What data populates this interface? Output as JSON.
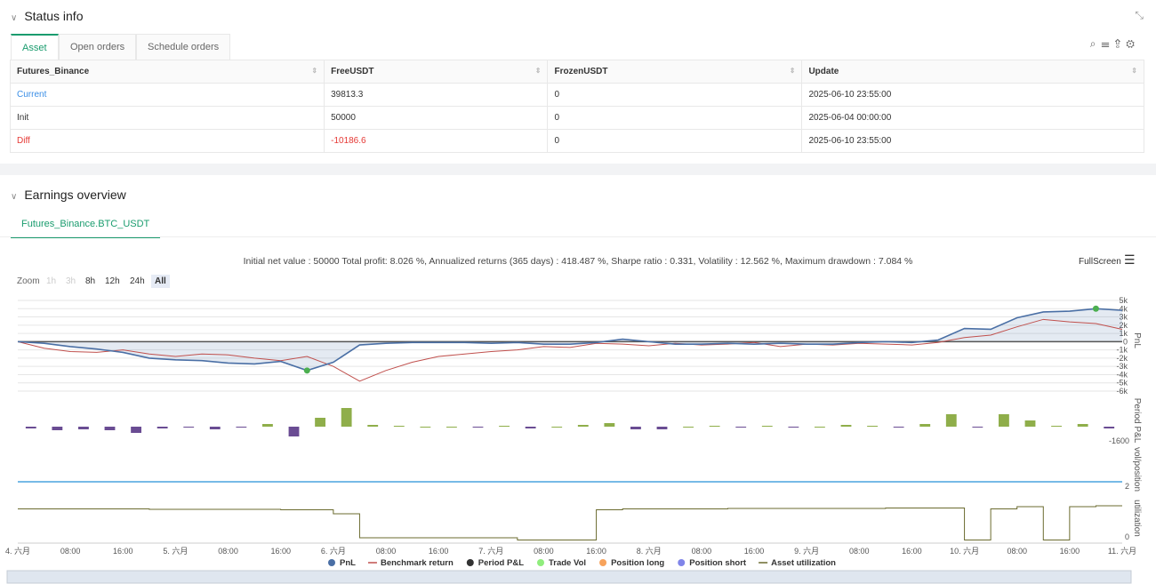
{
  "status": {
    "title": "Status info",
    "tabs": [
      "Asset",
      "Open orders",
      "Schedule orders"
    ],
    "table": {
      "headers": [
        "Futures_Binance",
        "FreeUSDT",
        "FrozenUSDT",
        "Update"
      ],
      "rows": [
        [
          "Current",
          "39813.3",
          "0",
          "2025-06-10 23:55:00"
        ],
        [
          "Init",
          "50000",
          "0",
          "2025-06-04 00:00:00"
        ],
        [
          "Diff",
          "-10186.6",
          "0",
          "2025-06-10 23:55:00"
        ]
      ]
    }
  },
  "earnings": {
    "title": "Earnings overview",
    "tab": "Futures_Binance.BTC_USDT",
    "summary": "Initial net value : 50000 Total profit: 8.026 %, Annualized returns (365 days) : 418.487 %, Sharpe ratio : 0.331, Volatility : 12.562 %, Maximum drawdown : 7.084 %",
    "fullscreen": "FullScreen",
    "zoom_label": "Zoom",
    "zoom_options": [
      "1h",
      "3h",
      "8h",
      "12h",
      "24h",
      "All"
    ]
  },
  "chart": {
    "x_labels": [
      "4. 六月",
      "08:00",
      "16:00",
      "5. 六月",
      "08:00",
      "16:00",
      "6. 六月",
      "08:00",
      "16:00",
      "7. 六月",
      "08:00",
      "16:00",
      "8. 六月",
      "08:00",
      "16:00",
      "9. 六月",
      "08:00",
      "16:00",
      "10. 六月",
      "08:00",
      "16:00",
      "11. 六月"
    ],
    "panel_titles": [
      "PnL",
      "Period P&L",
      "vol/position",
      "utilization"
    ],
    "pnl_ylim": [
      -6000,
      5000
    ],
    "pnl_yticks": [
      {
        "value": 5000,
        "label": "5k"
      },
      {
        "value": 4000,
        "label": "4k"
      },
      {
        "value": 3000,
        "label": "3k"
      },
      {
        "value": 2000,
        "label": "2k"
      },
      {
        "value": 1000,
        "label": "1k"
      },
      0,
      {
        "value": -1000,
        "label": "-1k"
      },
      {
        "value": -2000,
        "label": "-2k"
      },
      {
        "value": -3000,
        "label": "-3k"
      },
      {
        "value": -4000,
        "label": "-4k"
      },
      {
        "value": -5000,
        "label": "-5k"
      },
      {
        "value": -6000,
        "label": "-6k"
      }
    ],
    "pnl": [
      0,
      -200,
      -600,
      -900,
      -1300,
      -2000,
      -2200,
      -2300,
      -2600,
      -2700,
      -2400,
      -3500,
      -2500,
      -400,
      -200,
      -100,
      -100,
      -100,
      -200,
      -100,
      -300,
      -300,
      -100,
      300,
      0,
      -300,
      -300,
      -200,
      -300,
      -200,
      -300,
      -300,
      -100,
      0,
      -100,
      200,
      1600,
      1500,
      2900,
      3600,
      3700,
      4000,
      3800
    ],
    "benchmark": [
      0,
      -800,
      -1200,
      -1300,
      -1000,
      -1500,
      -1800,
      -1500,
      -1600,
      -2000,
      -2300,
      -1800,
      -3000,
      -4800,
      -3500,
      -2500,
      -1800,
      -1500,
      -1200,
      -1000,
      -600,
      -700,
      -200,
      -300,
      -500,
      -200,
      -400,
      -300,
      -100,
      -600,
      -300,
      -400,
      -200,
      -300,
      -400,
      -100,
      500,
      800,
      1800,
      2700,
      2400,
      2200,
      1500
    ],
    "period_ylim": [
      -1600,
      3200
    ],
    "period_yticks": [
      -1600
    ],
    "period_pnl": [
      -200,
      -400,
      -300,
      -400,
      -700,
      -200,
      -100,
      -300,
      -100,
      300,
      -1100,
      1000,
      2100,
      200,
      100,
      0,
      0,
      -100,
      100,
      -200,
      0,
      200,
      400,
      -300,
      -300,
      0,
      100,
      -100,
      100,
      -100,
      0,
      200,
      100,
      -100,
      300,
      1400,
      -100,
      1400,
      700,
      100,
      300,
      -200
    ],
    "vol_yticks": [
      2
    ],
    "util_ylim": [
      0,
      1
    ],
    "util_yticks": [
      0
    ],
    "utilization": [
      0.75,
      0.75,
      0.75,
      0.75,
      0.75,
      0.74,
      0.74,
      0.74,
      0.74,
      0.74,
      0.73,
      0.73,
      0.64,
      0.1,
      0.1,
      0.1,
      0.1,
      0.1,
      0.1,
      0.05,
      0.05,
      0.05,
      0.73,
      0.75,
      0.75,
      0.75,
      0.75,
      0.76,
      0.76,
      0.76,
      0.76,
      0.76,
      0.76,
      0.77,
      0.77,
      0.77,
      0.05,
      0.75,
      0.8,
      0.05,
      0.8,
      0.82
    ],
    "legend": [
      {
        "name": "PnL",
        "color": "#4a6fa5"
      },
      {
        "name": "Benchmark return",
        "color": "#c0504d"
      },
      {
        "name": "Period P&L",
        "color": "#333333"
      },
      {
        "name": "Trade Vol",
        "color": "#90ed7d"
      },
      {
        "name": "Position long",
        "color": "#f7a35c"
      },
      {
        "name": "Position short",
        "color": "#8085e9"
      },
      {
        "name": "Asset utilization",
        "color": "#6b6b2f"
      }
    ]
  }
}
